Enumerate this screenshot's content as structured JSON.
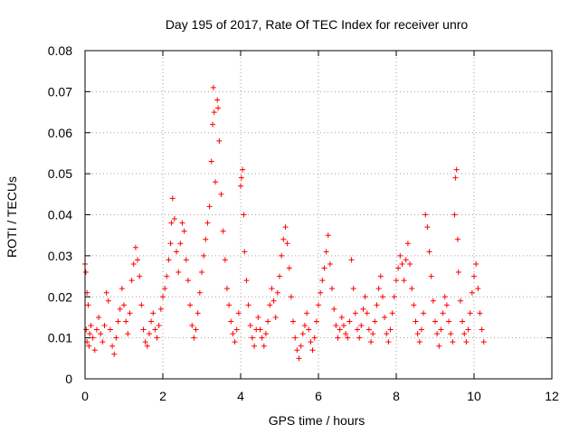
{
  "chart_data": {
    "type": "scatter",
    "title": "Day 195 of 2017, Rate Of TEC Index for receiver unro",
    "xlabel": "GPS time / hours",
    "ylabel": "ROTI / TECUs",
    "xlim": [
      0,
      12
    ],
    "ylim": [
      0,
      0.08
    ],
    "x_ticks": [
      "0",
      "2",
      "4",
      "6",
      "8",
      "10",
      "12"
    ],
    "y_ticks": [
      "0",
      "0.01",
      "0.02",
      "0.03",
      "0.04",
      "0.05",
      "0.06",
      "0.07",
      "0.08"
    ],
    "grid": true,
    "marker": "plus",
    "color": "#ff0000",
    "series": [
      {
        "values": [
          [
            0.0,
            0.028
          ],
          [
            0.02,
            0.026
          ],
          [
            0.05,
            0.021
          ],
          [
            0.08,
            0.018
          ],
          [
            0.03,
            0.012
          ],
          [
            0.05,
            0.009
          ],
          [
            0.1,
            0.008
          ],
          [
            0.12,
            0.011
          ],
          [
            0.15,
            0.013
          ],
          [
            0.2,
            0.01
          ],
          [
            0.25,
            0.007
          ],
          [
            0.3,
            0.012
          ],
          [
            0.35,
            0.015
          ],
          [
            0.4,
            0.011
          ],
          [
            0.45,
            0.009
          ],
          [
            0.5,
            0.013
          ],
          [
            0.55,
            0.021
          ],
          [
            0.6,
            0.019
          ],
          [
            0.65,
            0.012
          ],
          [
            0.7,
            0.008
          ],
          [
            0.75,
            0.006
          ],
          [
            0.8,
            0.01
          ],
          [
            0.85,
            0.014
          ],
          [
            0.9,
            0.017
          ],
          [
            0.95,
            0.022
          ],
          [
            1.0,
            0.018
          ],
          [
            1.05,
            0.014
          ],
          [
            1.1,
            0.011
          ],
          [
            1.15,
            0.016
          ],
          [
            1.2,
            0.024
          ],
          [
            1.25,
            0.028
          ],
          [
            1.3,
            0.032
          ],
          [
            1.35,
            0.029
          ],
          [
            1.4,
            0.025
          ],
          [
            1.45,
            0.018
          ],
          [
            1.5,
            0.012
          ],
          [
            1.55,
            0.009
          ],
          [
            1.6,
            0.008
          ],
          [
            1.65,
            0.011
          ],
          [
            1.7,
            0.014
          ],
          [
            1.75,
            0.016
          ],
          [
            1.8,
            0.012
          ],
          [
            1.85,
            0.01
          ],
          [
            1.9,
            0.013
          ],
          [
            1.95,
            0.017
          ],
          [
            2.0,
            0.02
          ],
          [
            2.05,
            0.022
          ],
          [
            2.1,
            0.025
          ],
          [
            2.15,
            0.029
          ],
          [
            2.2,
            0.033
          ],
          [
            2.22,
            0.038
          ],
          [
            2.25,
            0.044
          ],
          [
            2.3,
            0.039
          ],
          [
            2.35,
            0.031
          ],
          [
            2.4,
            0.026
          ],
          [
            2.45,
            0.033
          ],
          [
            2.5,
            0.038
          ],
          [
            2.55,
            0.036
          ],
          [
            2.6,
            0.029
          ],
          [
            2.65,
            0.024
          ],
          [
            2.7,
            0.018
          ],
          [
            2.75,
            0.013
          ],
          [
            2.8,
            0.01
          ],
          [
            2.85,
            0.012
          ],
          [
            2.9,
            0.016
          ],
          [
            2.95,
            0.021
          ],
          [
            3.0,
            0.026
          ],
          [
            3.05,
            0.03
          ],
          [
            3.1,
            0.034
          ],
          [
            3.15,
            0.038
          ],
          [
            3.2,
            0.042
          ],
          [
            3.25,
            0.053
          ],
          [
            3.28,
            0.062
          ],
          [
            3.3,
            0.071
          ],
          [
            3.32,
            0.065
          ],
          [
            3.35,
            0.048
          ],
          [
            3.4,
            0.068
          ],
          [
            3.42,
            0.066
          ],
          [
            3.45,
            0.058
          ],
          [
            3.5,
            0.045
          ],
          [
            3.55,
            0.036
          ],
          [
            3.6,
            0.029
          ],
          [
            3.65,
            0.022
          ],
          [
            3.7,
            0.018
          ],
          [
            3.75,
            0.014
          ],
          [
            3.8,
            0.011
          ],
          [
            3.85,
            0.009
          ],
          [
            3.9,
            0.012
          ],
          [
            3.95,
            0.016
          ],
          [
            4.0,
            0.047
          ],
          [
            4.02,
            0.049
          ],
          [
            4.05,
            0.051
          ],
          [
            4.08,
            0.04
          ],
          [
            4.1,
            0.031
          ],
          [
            4.15,
            0.024
          ],
          [
            4.2,
            0.018
          ],
          [
            4.25,
            0.013
          ],
          [
            4.3,
            0.01
          ],
          [
            4.35,
            0.008
          ],
          [
            4.4,
            0.012
          ],
          [
            4.45,
            0.015
          ],
          [
            4.5,
            0.012
          ],
          [
            4.55,
            0.01
          ],
          [
            4.6,
            0.008
          ],
          [
            4.65,
            0.011
          ],
          [
            4.7,
            0.014
          ],
          [
            4.75,
            0.018
          ],
          [
            4.8,
            0.022
          ],
          [
            4.85,
            0.019
          ],
          [
            4.9,
            0.015
          ],
          [
            4.95,
            0.021
          ],
          [
            5.0,
            0.025
          ],
          [
            5.05,
            0.03
          ],
          [
            5.1,
            0.034
          ],
          [
            5.15,
            0.037
          ],
          [
            5.2,
            0.033
          ],
          [
            5.25,
            0.027
          ],
          [
            5.3,
            0.02
          ],
          [
            5.35,
            0.014
          ],
          [
            5.4,
            0.01
          ],
          [
            5.45,
            0.007
          ],
          [
            5.5,
            0.005
          ],
          [
            5.55,
            0.008
          ],
          [
            5.6,
            0.011
          ],
          [
            5.65,
            0.013
          ],
          [
            5.7,
            0.016
          ],
          [
            5.75,
            0.012
          ],
          [
            5.8,
            0.009
          ],
          [
            5.85,
            0.007
          ],
          [
            5.9,
            0.01
          ],
          [
            5.95,
            0.014
          ],
          [
            6.0,
            0.018
          ],
          [
            6.05,
            0.021
          ],
          [
            6.1,
            0.024
          ],
          [
            6.15,
            0.027
          ],
          [
            6.2,
            0.031
          ],
          [
            6.25,
            0.035
          ],
          [
            6.3,
            0.028
          ],
          [
            6.35,
            0.022
          ],
          [
            6.4,
            0.017
          ],
          [
            6.45,
            0.013
          ],
          [
            6.5,
            0.01
          ],
          [
            6.55,
            0.012
          ],
          [
            6.6,
            0.015
          ],
          [
            6.65,
            0.013
          ],
          [
            6.7,
            0.011
          ],
          [
            6.75,
            0.01
          ],
          [
            6.8,
            0.014
          ],
          [
            6.85,
            0.029
          ],
          [
            6.9,
            0.022
          ],
          [
            6.95,
            0.016
          ],
          [
            7.0,
            0.012
          ],
          [
            7.05,
            0.01
          ],
          [
            7.1,
            0.013
          ],
          [
            7.15,
            0.017
          ],
          [
            7.2,
            0.02
          ],
          [
            7.25,
            0.016
          ],
          [
            7.3,
            0.012
          ],
          [
            7.35,
            0.009
          ],
          [
            7.4,
            0.011
          ],
          [
            7.45,
            0.014
          ],
          [
            7.5,
            0.018
          ],
          [
            7.55,
            0.022
          ],
          [
            7.6,
            0.025
          ],
          [
            7.65,
            0.02
          ],
          [
            7.7,
            0.015
          ],
          [
            7.75,
            0.011
          ],
          [
            7.8,
            0.009
          ],
          [
            7.85,
            0.012
          ],
          [
            7.9,
            0.016
          ],
          [
            7.95,
            0.02
          ],
          [
            8.0,
            0.024
          ],
          [
            8.05,
            0.027
          ],
          [
            8.1,
            0.03
          ],
          [
            8.15,
            0.028
          ],
          [
            8.2,
            0.024
          ],
          [
            8.25,
            0.029
          ],
          [
            8.3,
            0.033
          ],
          [
            8.35,
            0.028
          ],
          [
            8.4,
            0.022
          ],
          [
            8.45,
            0.018
          ],
          [
            8.5,
            0.014
          ],
          [
            8.55,
            0.011
          ],
          [
            8.6,
            0.009
          ],
          [
            8.65,
            0.012
          ],
          [
            8.7,
            0.016
          ],
          [
            8.75,
            0.04
          ],
          [
            8.8,
            0.037
          ],
          [
            8.85,
            0.031
          ],
          [
            8.9,
            0.025
          ],
          [
            8.95,
            0.019
          ],
          [
            9.0,
            0.014
          ],
          [
            9.05,
            0.011
          ],
          [
            9.1,
            0.008
          ],
          [
            9.15,
            0.012
          ],
          [
            9.2,
            0.016
          ],
          [
            9.25,
            0.02
          ],
          [
            9.3,
            0.018
          ],
          [
            9.35,
            0.014
          ],
          [
            9.4,
            0.011
          ],
          [
            9.45,
            0.009
          ],
          [
            9.5,
            0.04
          ],
          [
            9.52,
            0.049
          ],
          [
            9.55,
            0.051
          ],
          [
            9.58,
            0.034
          ],
          [
            9.6,
            0.026
          ],
          [
            9.65,
            0.019
          ],
          [
            9.7,
            0.014
          ],
          [
            9.75,
            0.011
          ],
          [
            9.8,
            0.009
          ],
          [
            9.85,
            0.012
          ],
          [
            9.9,
            0.016
          ],
          [
            9.95,
            0.021
          ],
          [
            10.0,
            0.025
          ],
          [
            10.05,
            0.028
          ],
          [
            10.1,
            0.022
          ],
          [
            10.15,
            0.016
          ],
          [
            10.2,
            0.012
          ],
          [
            10.25,
            0.009
          ]
        ]
      }
    ]
  }
}
